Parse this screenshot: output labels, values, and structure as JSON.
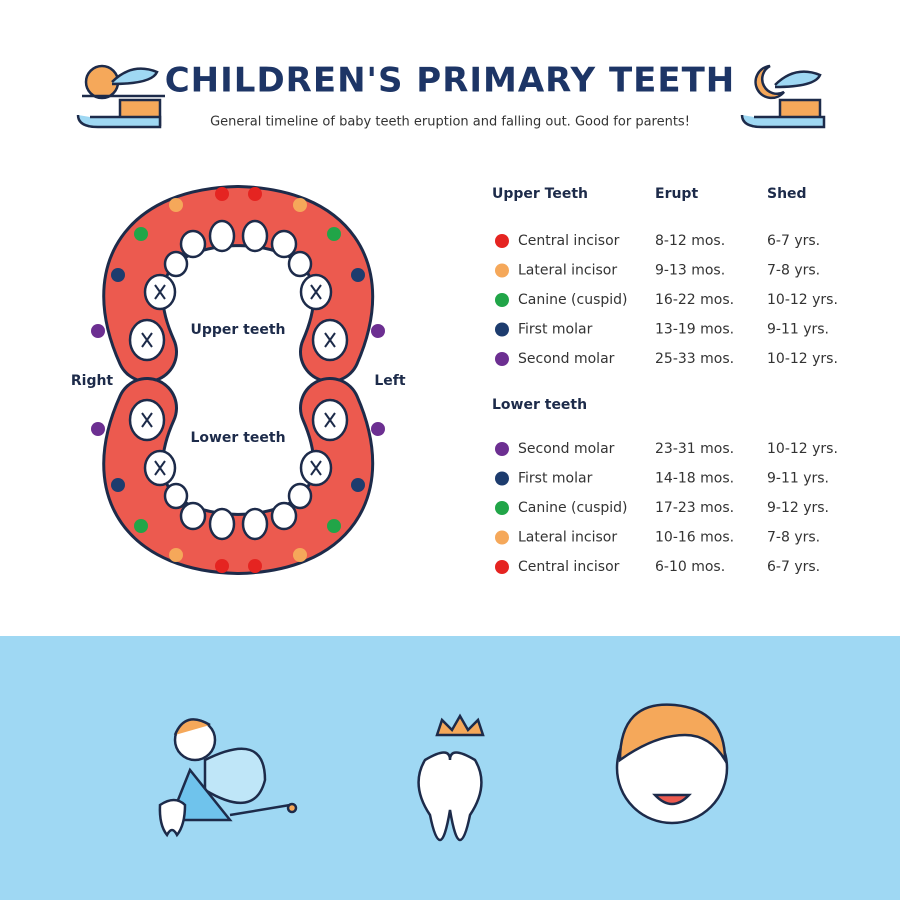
{
  "header": {
    "title": "CHILDREN'S PRIMARY TEETH",
    "subtitle": "General timeline of baby teeth eruption and falling out. Good for parents!"
  },
  "diagram": {
    "upper_label": "Upper teeth",
    "lower_label": "Lower teeth",
    "right_label": "Right",
    "left_label": "Left"
  },
  "table": {
    "columns": [
      "Upper Teeth",
      "Erupt",
      "Shed"
    ],
    "upper_rows": [
      {
        "name": "Central incisor",
        "erupt": "8-12 mos.",
        "shed": "6-7 yrs.",
        "color": "#e52421"
      },
      {
        "name": "Lateral incisor",
        "erupt": "9-13 mos.",
        "shed": "7-8 yrs.",
        "color": "#f5a85a"
      },
      {
        "name": "Canine (cuspid)",
        "erupt": "16-22 mos.",
        "shed": "10-12 yrs.",
        "color": "#21a548"
      },
      {
        "name": "First molar",
        "erupt": "13-19 mos.",
        "shed": "9-11 yrs.",
        "color": "#1d3c6e"
      },
      {
        "name": "Second molar",
        "erupt": "25-33 mos.",
        "shed": "10-12 yrs.",
        "color": "#6c2f91"
      }
    ],
    "lower_heading": "Lower teeth",
    "lower_rows": [
      {
        "name": "Second molar",
        "erupt": "23-31 mos.",
        "shed": "10-12 yrs.",
        "color": "#6c2f91"
      },
      {
        "name": "First molar",
        "erupt": "14-18 mos.",
        "shed": "9-11 yrs.",
        "color": "#1d3c6e"
      },
      {
        "name": "Canine (cuspid)",
        "erupt": "17-23 mos.",
        "shed": "9-12 yrs.",
        "color": "#21a548"
      },
      {
        "name": "Lateral incisor",
        "erupt": "10-16 mos.",
        "shed": "7-8 yrs.",
        "color": "#f5a85a"
      },
      {
        "name": "Central incisor",
        "erupt": "6-10 mos.",
        "shed": "6-7 yrs.",
        "color": "#e52421"
      }
    ]
  }
}
